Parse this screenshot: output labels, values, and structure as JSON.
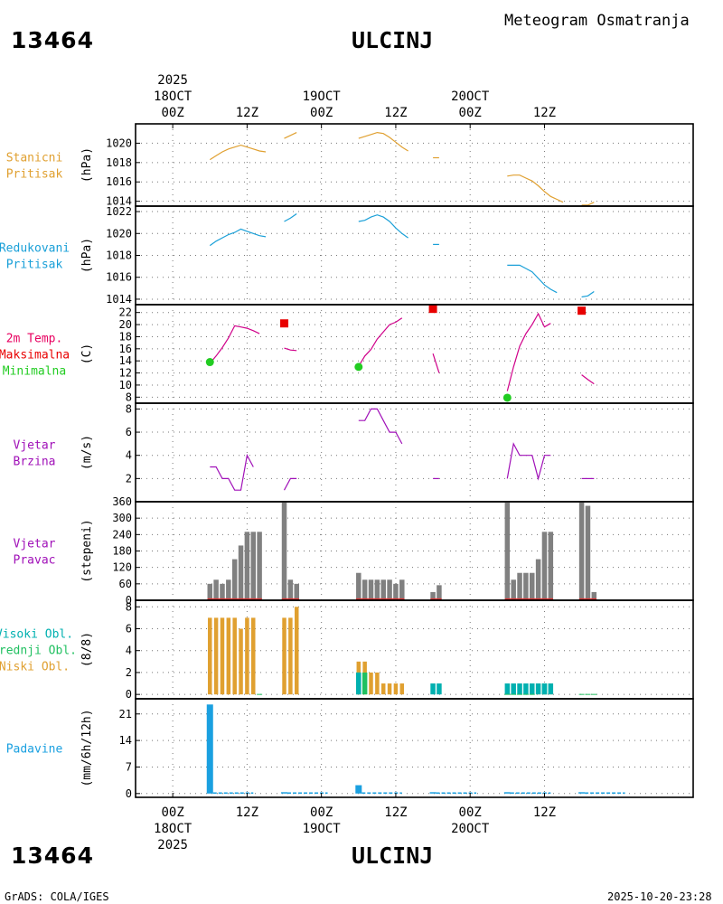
{
  "header": {
    "station_id": "13464",
    "station_name": "ULCINJ",
    "product": "Meteogram Osmatranja"
  },
  "footer": {
    "station_id": "13464",
    "station_name": "ULCINJ",
    "credit": "GrADS: COLA/IGES",
    "timestamp": "2025-10-20-23:28"
  },
  "time_axis": {
    "year": "2025",
    "range_hours": [
      -6,
      84
    ],
    "ticks": [
      {
        "h": 0,
        "label": "00Z",
        "date": "18OCT"
      },
      {
        "h": 12,
        "label": "12Z"
      },
      {
        "h": 24,
        "label": "00Z",
        "date": "19OCT"
      },
      {
        "h": 36,
        "label": "12Z"
      },
      {
        "h": 48,
        "label": "00Z",
        "date": "20OCT"
      },
      {
        "h": 60,
        "label": "12Z"
      }
    ]
  },
  "colors": {
    "station_pressure": "#e0a030",
    "reduced_pressure": "#1aa0d8",
    "temperature": "#d0008a",
    "tmax": "#e80000",
    "tmin": "#22cc22",
    "wind": "#a010b8",
    "wind_dir_bar": "#808080",
    "wind_dir_base": "#e03030",
    "cloud_high": "#00b0b0",
    "cloud_mid": "#20c060",
    "cloud_low": "#e0a030",
    "precip": "#1aa0e0",
    "label_station_pressure": "#e0a030",
    "label_reduced_pressure": "#1aa0d8",
    "label_temp": "#e80060",
    "label_wind": "#a010b8"
  },
  "chart_data": [
    {
      "id": "stanicni",
      "type": "line",
      "labels": [
        "Stanicni",
        "Pritisak"
      ],
      "label_colors": [
        "label_station_pressure",
        "label_station_pressure"
      ],
      "ylabel": "(hPa)",
      "ylim": [
        1013.5,
        1022
      ],
      "yticks": [
        1014,
        1016,
        1018,
        1020
      ],
      "series": [
        {
          "name": "Stanicni pritisak",
          "color": "station_pressure",
          "segments": [
            [
              [
                6,
                1018.3
              ],
              [
                7,
                1018.7
              ],
              [
                8,
                1019.1
              ],
              [
                9,
                1019.4
              ],
              [
                10,
                1019.6
              ],
              [
                11,
                1019.8
              ],
              [
                12,
                1019.6
              ],
              [
                13,
                1019.4
              ],
              [
                14,
                1019.2
              ],
              [
                15,
                1019.1
              ]
            ],
            [
              [
                18,
                1020.5
              ],
              [
                19,
                1020.8
              ],
              [
                20,
                1021.1
              ]
            ],
            [
              [
                30,
                1020.5
              ],
              [
                31,
                1020.7
              ],
              [
                32,
                1020.9
              ],
              [
                33,
                1021.1
              ],
              [
                34,
                1021.0
              ],
              [
                35,
                1020.6
              ],
              [
                36,
                1020.1
              ],
              [
                37,
                1019.6
              ],
              [
                38,
                1019.2
              ]
            ],
            [
              [
                42,
                1018.5
              ],
              [
                43,
                1018.5
              ]
            ],
            [
              [
                54,
                1016.6
              ],
              [
                55,
                1016.7
              ],
              [
                56,
                1016.7
              ],
              [
                57,
                1016.4
              ],
              [
                58,
                1016.1
              ],
              [
                59,
                1015.6
              ],
              [
                60,
                1015.0
              ],
              [
                61,
                1014.5
              ],
              [
                62,
                1014.2
              ],
              [
                63,
                1013.9
              ]
            ],
            [
              [
                66,
                1013.6
              ],
              [
                67,
                1013.6
              ],
              [
                68,
                1013.9
              ]
            ]
          ]
        }
      ]
    },
    {
      "id": "redukovani",
      "type": "line",
      "labels": [
        "Redukovani",
        "Pritisak"
      ],
      "label_colors": [
        "label_reduced_pressure",
        "label_reduced_pressure"
      ],
      "ylabel": "(hPa)",
      "ylim": [
        1013.5,
        1022.5
      ],
      "yticks": [
        1014,
        1016,
        1018,
        1020,
        1022
      ],
      "series": [
        {
          "name": "Redukovani pritisak",
          "color": "reduced_pressure",
          "segments": [
            [
              [
                6,
                1018.9
              ],
              [
                7,
                1019.3
              ],
              [
                8,
                1019.6
              ],
              [
                9,
                1019.9
              ],
              [
                10,
                1020.1
              ],
              [
                11,
                1020.4
              ],
              [
                12,
                1020.2
              ],
              [
                13,
                1020.0
              ],
              [
                14,
                1019.8
              ],
              [
                15,
                1019.7
              ]
            ],
            [
              [
                18,
                1021.1
              ],
              [
                19,
                1021.4
              ],
              [
                20,
                1021.8
              ]
            ],
            [
              [
                30,
                1021.1
              ],
              [
                31,
                1021.2
              ],
              [
                32,
                1021.5
              ],
              [
                33,
                1021.7
              ],
              [
                34,
                1021.5
              ],
              [
                35,
                1021.1
              ],
              [
                36,
                1020.5
              ],
              [
                37,
                1020.0
              ],
              [
                38,
                1019.6
              ]
            ],
            [
              [
                42,
                1019.0
              ],
              [
                43,
                1019.0
              ]
            ],
            [
              [
                54,
                1017.1
              ],
              [
                55,
                1017.1
              ],
              [
                56,
                1017.1
              ],
              [
                57,
                1016.8
              ],
              [
                58,
                1016.5
              ],
              [
                59,
                1015.9
              ],
              [
                60,
                1015.3
              ],
              [
                61,
                1014.9
              ],
              [
                62,
                1014.6
              ]
            ],
            [
              [
                66,
                1014.2
              ],
              [
                67,
                1014.3
              ],
              [
                68,
                1014.7
              ]
            ]
          ]
        }
      ]
    },
    {
      "id": "temperatura",
      "type": "line",
      "labels": [
        "2m Temp.",
        "Maksimalna",
        "Minimalna"
      ],
      "label_colors": [
        "label_temp",
        "tmax",
        "tmin"
      ],
      "ylabel": "(C)",
      "ylim": [
        7,
        23.3
      ],
      "yticks": [
        8,
        10,
        12,
        14,
        16,
        18,
        20,
        22
      ],
      "series": [
        {
          "name": "2m temperatura",
          "color": "temperature",
          "segments": [
            [
              [
                6,
                13.6
              ],
              [
                7,
                14.8
              ],
              [
                8,
                16.2
              ],
              [
                9,
                17.8
              ],
              [
                10,
                19.8
              ],
              [
                11,
                19.6
              ],
              [
                12,
                19.4
              ],
              [
                13,
                19.0
              ],
              [
                14,
                18.5
              ]
            ],
            [
              [
                18,
                16.1
              ],
              [
                19,
                15.8
              ],
              [
                20,
                15.7
              ]
            ],
            [
              [
                30,
                13.1
              ],
              [
                31,
                14.8
              ],
              [
                32,
                15.9
              ],
              [
                33,
                17.6
              ],
              [
                34,
                18.8
              ],
              [
                35,
                20.0
              ],
              [
                36,
                20.4
              ],
              [
                37,
                21.1
              ]
            ],
            [
              [
                42,
                15.2
              ],
              [
                43,
                12.0
              ]
            ],
            [
              [
                54,
                9.0
              ],
              [
                55,
                13.0
              ],
              [
                56,
                16.4
              ],
              [
                57,
                18.5
              ],
              [
                58,
                20.0
              ],
              [
                59,
                21.8
              ],
              [
                60,
                19.6
              ],
              [
                61,
                20.2
              ]
            ],
            [
              [
                66,
                11.7
              ],
              [
                67,
                10.9
              ],
              [
                68,
                10.2
              ]
            ]
          ]
        },
        {
          "name": "Maksimalna",
          "color": "tmax",
          "marker": "square",
          "points": [
            [
              18,
              20.2
            ],
            [
              42,
              22.6
            ],
            [
              66,
              22.3
            ]
          ]
        },
        {
          "name": "Minimalna",
          "color": "tmin",
          "marker": "circle",
          "points": [
            [
              6,
              13.8
            ],
            [
              30,
              13.0
            ],
            [
              54,
              7.9
            ]
          ]
        }
      ]
    },
    {
      "id": "brzina",
      "type": "line",
      "labels": [
        "Vjetar",
        "Brzina"
      ],
      "label_colors": [
        "label_wind",
        "label_wind"
      ],
      "ylabel": "(m/s)",
      "ylim": [
        0,
        8.5
      ],
      "yticks": [
        2,
        4,
        6,
        8
      ],
      "series": [
        {
          "name": "Brzina vjetra",
          "color": "wind",
          "segments": [
            [
              [
                6,
                3
              ],
              [
                7,
                3
              ],
              [
                8,
                2
              ],
              [
                9,
                2
              ],
              [
                10,
                1
              ],
              [
                11,
                1
              ],
              [
                12,
                4
              ],
              [
                13,
                3
              ]
            ],
            [
              [
                18,
                1
              ],
              [
                19,
                2
              ],
              [
                20,
                2
              ]
            ],
            [
              [
                30,
                7
              ],
              [
                31,
                7
              ],
              [
                32,
                8
              ],
              [
                33,
                8
              ],
              [
                34,
                7
              ],
              [
                35,
                6
              ],
              [
                36,
                6
              ],
              [
                37,
                5
              ]
            ],
            [
              [
                42,
                2
              ],
              [
                43,
                2
              ]
            ],
            [
              [
                54,
                2
              ],
              [
                55,
                5
              ],
              [
                56,
                4
              ],
              [
                57,
                4
              ],
              [
                58,
                4
              ],
              [
                59,
                2
              ],
              [
                60,
                4
              ],
              [
                61,
                4
              ]
            ],
            [
              [
                66,
                2
              ],
              [
                67,
                2
              ],
              [
                68,
                2
              ]
            ]
          ]
        }
      ]
    },
    {
      "id": "pravac",
      "type": "bar",
      "labels": [
        "Vjetar",
        "Pravac"
      ],
      "label_colors": [
        "label_wind",
        "label_wind"
      ],
      "ylabel": "(stepeni)",
      "ylim": [
        0,
        360
      ],
      "yticks": [
        0,
        60,
        120,
        180,
        240,
        300,
        360
      ],
      "bar_color": "wind_dir_bar",
      "base_color": "wind_dir_base",
      "x": [
        6,
        7,
        8,
        9,
        10,
        11,
        12,
        13,
        14,
        18,
        19,
        20,
        30,
        31,
        32,
        33,
        34,
        35,
        36,
        37,
        42,
        43,
        54,
        55,
        56,
        57,
        58,
        59,
        60,
        61,
        66,
        67,
        68
      ],
      "values": [
        60,
        75,
        60,
        75,
        150,
        200,
        250,
        250,
        250,
        360,
        75,
        60,
        100,
        75,
        75,
        75,
        75,
        75,
        60,
        75,
        30,
        55,
        360,
        75,
        100,
        100,
        100,
        150,
        250,
        250,
        360,
        345,
        30
      ]
    },
    {
      "id": "oblaci",
      "type": "bar",
      "labels": [
        "Visoki Obl.",
        "Srednji Obl.",
        "Niski Obl."
      ],
      "label_colors": [
        "cloud_high",
        "cloud_mid",
        "cloud_low"
      ],
      "ylabel": "(8/8)",
      "ylim": [
        -0.4,
        8.6
      ],
      "yticks": [
        0,
        2,
        4,
        6,
        8
      ],
      "series": [
        {
          "name": "Niski Obl.",
          "color": "cloud_low",
          "x": [
            6,
            7,
            8,
            9,
            10,
            11,
            12,
            13,
            14,
            18,
            19,
            20,
            30,
            31,
            32,
            33,
            34,
            35,
            36,
            37,
            54,
            55,
            56,
            57,
            58,
            59,
            60,
            61,
            66,
            67,
            68
          ],
          "values": [
            7,
            7,
            7,
            7,
            7,
            6,
            7,
            7,
            0,
            7,
            7,
            8,
            3,
            3,
            2,
            2,
            1,
            1,
            1,
            1,
            0,
            0,
            0,
            0,
            0,
            1,
            1,
            1,
            0,
            0,
            0
          ]
        },
        {
          "name": "Srednji Obl.",
          "color": "cloud_mid",
          "x": [
            30,
            31,
            60
          ],
          "values": [
            2,
            2,
            1
          ]
        },
        {
          "name": "Visoki Obl.",
          "color": "cloud_high",
          "x": [
            30,
            42,
            43,
            54,
            55,
            56,
            57,
            58,
            59,
            60,
            61
          ],
          "values": [
            2,
            1,
            1,
            1,
            1,
            1,
            1,
            1,
            1,
            1,
            1
          ]
        }
      ]
    },
    {
      "id": "padavine",
      "type": "bar",
      "labels": [
        "Padavine"
      ],
      "label_colors": [
        "precip"
      ],
      "ylabel": "(mm/6h/12h)",
      "ylim": [
        -1,
        25
      ],
      "yticks": [
        0,
        7,
        14,
        21
      ],
      "bar_color": "precip",
      "x": [
        6,
        18,
        30,
        42,
        54,
        66
      ],
      "values": [
        23.5,
        0.3,
        2.2,
        0.1,
        0.1,
        0.1
      ]
    }
  ]
}
